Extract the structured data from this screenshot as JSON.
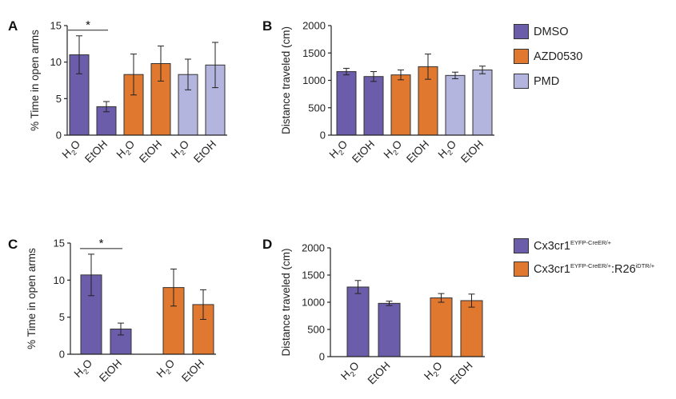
{
  "colors": {
    "dmso": "#6b5da9",
    "azd0530": "#e0782f",
    "pmd": "#b3b5de"
  },
  "legend_top": [
    {
      "label": "DMSO",
      "color": "#6b5da9"
    },
    {
      "label": "AZD0530",
      "color": "#e0782f"
    },
    {
      "label": "PMD",
      "color": "#b3b5de"
    }
  ],
  "legend_bottom": [
    {
      "base": "Cx3cr1",
      "sup": "EYFP-CreER/+",
      "tail": "",
      "tail_sup": "",
      "color": "#6b5da9"
    },
    {
      "base": "Cx3cr1",
      "sup": "EYFP-CreER/+",
      "tail": ":R26",
      "tail_sup": "iDTR/+",
      "color": "#e0782f"
    }
  ],
  "chart_data": [
    {
      "panel": "A",
      "type": "bar",
      "ylabel": "% Time in open arms",
      "ylim": [
        0,
        15
      ],
      "yticks": [
        0,
        5,
        10,
        15
      ],
      "categories": [
        "H2O",
        "EtOH",
        "H2O",
        "EtOH",
        "H2O",
        "EtOH"
      ],
      "values": [
        11.0,
        3.9,
        8.3,
        9.8,
        8.3,
        9.6
      ],
      "errors": [
        2.6,
        0.7,
        2.8,
        2.4,
        2.1,
        3.1
      ],
      "groups": [
        "DMSO",
        "DMSO",
        "AZD0530",
        "AZD0530",
        "PMD",
        "PMD"
      ],
      "significance": [
        {
          "from": 0,
          "to": 1,
          "label": "*"
        }
      ]
    },
    {
      "panel": "B",
      "type": "bar",
      "ylabel": "Distance traveled (cm)",
      "ylim": [
        0,
        2000
      ],
      "yticks": [
        0,
        500,
        1000,
        1500,
        2000
      ],
      "categories": [
        "H2O",
        "EtOH",
        "H2O",
        "EtOH",
        "H2O",
        "EtOH"
      ],
      "values": [
        1160,
        1070,
        1100,
        1250,
        1090,
        1190
      ],
      "errors": [
        60,
        90,
        90,
        230,
        60,
        70
      ],
      "groups": [
        "DMSO",
        "DMSO",
        "AZD0530",
        "AZD0530",
        "PMD",
        "PMD"
      ],
      "significance": []
    },
    {
      "panel": "C",
      "type": "bar",
      "ylabel": "% Time in open arms",
      "ylim": [
        0,
        15
      ],
      "yticks": [
        0,
        5,
        10,
        15
      ],
      "categories": [
        "H2O",
        "EtOH",
        "H2O",
        "EtOH"
      ],
      "values": [
        10.7,
        3.4,
        9.0,
        6.7
      ],
      "errors": [
        2.8,
        0.8,
        2.5,
        2.0
      ],
      "groups": [
        "Cx3cr1",
        "Cx3cr1",
        "Cx3cr1:R26",
        "Cx3cr1:R26"
      ],
      "significance": [
        {
          "from": 0,
          "to": 1,
          "label": "*"
        }
      ]
    },
    {
      "panel": "D",
      "type": "bar",
      "ylabel": "Distance traveled (cm)",
      "ylim": [
        0,
        2000
      ],
      "yticks": [
        0,
        500,
        1000,
        1500,
        2000
      ],
      "categories": [
        "H2O",
        "EtOH",
        "H2O",
        "EtOH"
      ],
      "values": [
        1280,
        980,
        1080,
        1030
      ],
      "errors": [
        120,
        40,
        80,
        120
      ],
      "groups": [
        "Cx3cr1",
        "Cx3cr1",
        "Cx3cr1:R26",
        "Cx3cr1:R26"
      ],
      "significance": []
    }
  ]
}
